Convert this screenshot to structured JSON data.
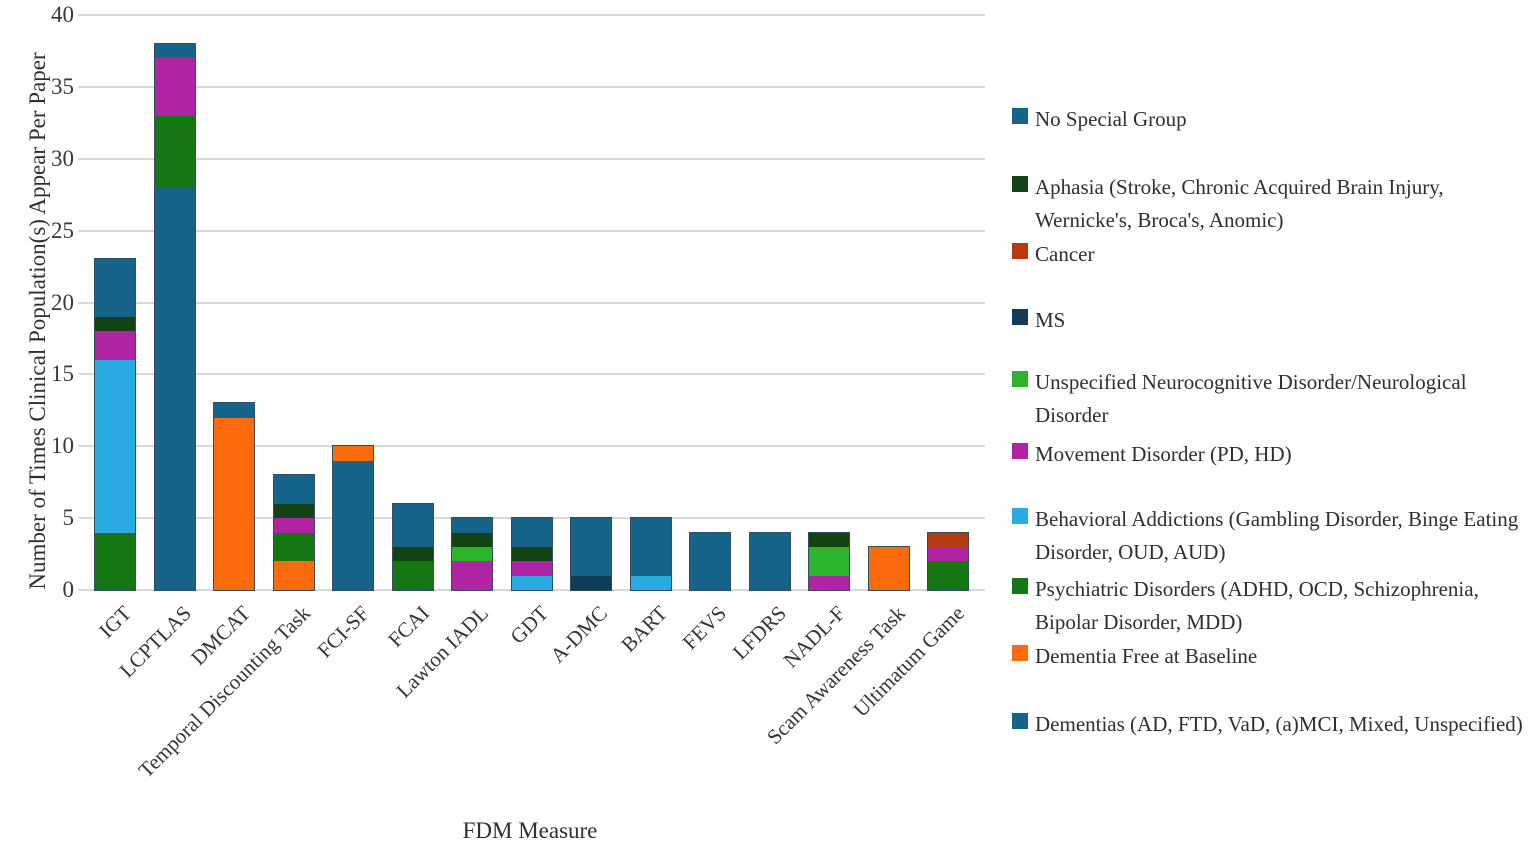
{
  "figure": {
    "xlabel": "FDM Measure",
    "ylabel": "Number of Times Clinical Population(s) Appear Per Paper"
  },
  "chart_data": {
    "type": "bar",
    "stacked": true,
    "grid": "horizontal",
    "legend_position": "right",
    "xlabel": "FDM Measure",
    "ylabel": "Number of Times Clinical Population(s) Appear Per Paper",
    "ylim": [
      0,
      40
    ],
    "yticks": [
      0,
      5,
      10,
      15,
      20,
      25,
      30,
      35,
      40
    ],
    "categories": [
      "IGT",
      "LCPTLAS",
      "DMCAT",
      "Temporal Discounting Task",
      "FCI-SF",
      "FCAI",
      "Lawton IADL",
      "GDT",
      "A-DMC",
      "BART",
      "FEVS",
      "LFDRS",
      "NADL-F",
      "Scam Awareness Task",
      "Ultimatum Game"
    ],
    "category_totals": [
      23,
      38,
      13,
      8,
      10,
      6,
      5,
      5,
      5,
      5,
      4,
      4,
      4,
      3,
      4
    ],
    "stack_order_note": "series listed bottom-to-top as stacked in each bar",
    "series": [
      {
        "name": "Dementias (AD, FTD, VaD, (a)MCI, Mixed, Unspecified)",
        "color": "#17648B",
        "values": [
          0,
          28,
          0,
          0,
          9,
          0,
          0,
          0,
          0,
          0,
          0,
          0,
          0,
          0,
          0
        ]
      },
      {
        "name": "Dementia Free at Baseline",
        "color": "#FB6A0D",
        "values": [
          0,
          0,
          12,
          2,
          1,
          0,
          0,
          0,
          0,
          0,
          0,
          0,
          0,
          3,
          0
        ]
      },
      {
        "name": "Psychiatric Disorders (ADHD, OCD, Schizophrenia, Bipolar Disorder, MDD)",
        "color": "#147714",
        "values": [
          4,
          5,
          0,
          2,
          0,
          2,
          0,
          0,
          0,
          0,
          0,
          0,
          0,
          0,
          2
        ]
      },
      {
        "name": "Behavioral Addictions (Gambling Disorder, Binge Eating Disorder, OUD, AUD)",
        "color": "#29ABE2",
        "values": [
          12,
          0,
          0,
          0,
          0,
          0,
          0,
          1,
          0,
          1,
          0,
          0,
          0,
          0,
          0
        ]
      },
      {
        "name": "Movement Disorder (PD, HD)",
        "color": "#B023A2",
        "values": [
          2,
          4,
          0,
          1,
          0,
          0,
          2,
          1,
          0,
          0,
          0,
          0,
          1,
          0,
          1
        ]
      },
      {
        "name": "Unspecified Neurocognitive Disorder/Neurological Disorder",
        "color": "#2DB42D",
        "values": [
          0,
          0,
          0,
          0,
          0,
          0,
          1,
          0,
          0,
          0,
          0,
          0,
          2,
          0,
          0
        ]
      },
      {
        "name": "MS",
        "color": "#103C58",
        "values": [
          0,
          0,
          0,
          0,
          0,
          0,
          0,
          0,
          1,
          0,
          0,
          0,
          0,
          0,
          0
        ]
      },
      {
        "name": "Cancer",
        "color": "#B43A10",
        "values": [
          0,
          0,
          0,
          0,
          0,
          0,
          0,
          0,
          0,
          0,
          0,
          0,
          0,
          0,
          1
        ]
      },
      {
        "name": "Aphasia (Stroke, Chronic Acquired Brain Injury, Wernicke's, Broca's, Anomic)",
        "color": "#134213",
        "values": [
          1,
          0,
          0,
          1,
          0,
          1,
          1,
          1,
          0,
          0,
          0,
          0,
          1,
          0,
          0
        ]
      },
      {
        "name": "No Special Group",
        "color": "#17648B",
        "values": [
          4,
          1,
          1,
          2,
          0,
          3,
          1,
          2,
          4,
          4,
          4,
          4,
          0,
          0,
          0
        ]
      }
    ]
  },
  "legend": {
    "items": [
      {
        "label": "No Special Group",
        "color": "#17648B"
      },
      {
        "label": "Aphasia (Stroke, Chronic Acquired Brain Injury, Wernicke's, Broca's, Anomic)",
        "color": "#134213"
      },
      {
        "label": "Cancer",
        "color": "#B43A10"
      },
      {
        "label": "MS",
        "color": "#103C58"
      },
      {
        "label": "Unspecified Neurocognitive Disorder/Neurological Disorder",
        "color": "#2DB42D"
      },
      {
        "label": "Movement Disorder (PD, HD)",
        "color": "#B023A2"
      },
      {
        "label": "Behavioral Addictions (Gambling Disorder, Binge Eating Disorder, OUD, AUD)",
        "color": "#29ABE2"
      },
      {
        "label": "Psychiatric Disorders (ADHD, OCD, Schizophrenia, Bipolar Disorder, MDD)",
        "color": "#147714"
      },
      {
        "label": "Dementia Free at Baseline",
        "color": "#FB6A0D"
      },
      {
        "label": "Dementias (AD, FTD, VaD, (a)MCI, Mixed, Unspecified)",
        "color": "#17648B"
      }
    ]
  }
}
